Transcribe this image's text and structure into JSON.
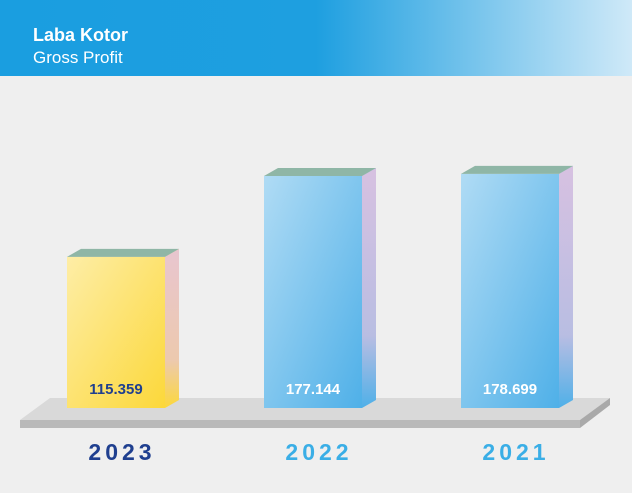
{
  "chart_data": {
    "type": "bar3d",
    "title": "Laba Kotor",
    "subtitle": "Gross Profit",
    "categories": [
      "2023",
      "2022",
      "2021"
    ],
    "values": [
      115.359,
      177.144,
      178.699
    ],
    "colors": [
      "#fcd83a",
      "#4fb0e8",
      "#4fb0e8"
    ],
    "label_colors": [
      "#1f3f8f",
      "#ffffff",
      "#ffffff"
    ],
    "category_colors": [
      "#1f3f8f",
      "#3aaee6",
      "#3aaee6"
    ]
  }
}
